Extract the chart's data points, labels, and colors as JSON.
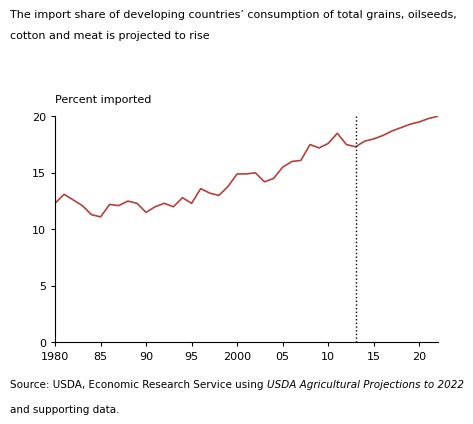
{
  "title_line1": "The import share of developing countries’ consumption of total grains, oilseeds,",
  "title_line2": "cotton and meat is projected to rise",
  "ylabel": "Percent imported",
  "source_normal1": "Source: USDA, Economic Research Service using ",
  "source_italic": "USDA Agricultural Projections to 2022",
  "source_normal2": "and supporting data.",
  "line_color": "#b5403a",
  "dotted_line_x": 2013,
  "xlim": [
    1980,
    2022
  ],
  "ylim": [
    0,
    20
  ],
  "yticks": [
    0,
    5,
    10,
    15,
    20
  ],
  "xticks": [
    1980,
    1985,
    1990,
    1995,
    2000,
    2005,
    2010,
    2015,
    2020
  ],
  "xticklabels": [
    "1980",
    "85",
    "90",
    "95",
    "2000",
    "05",
    "10",
    "15",
    "20"
  ],
  "years": [
    1980,
    1981,
    1982,
    1983,
    1984,
    1985,
    1986,
    1987,
    1988,
    1989,
    1990,
    1991,
    1992,
    1993,
    1994,
    1995,
    1996,
    1997,
    1998,
    1999,
    2000,
    2001,
    2002,
    2003,
    2004,
    2005,
    2006,
    2007,
    2008,
    2009,
    2010,
    2011,
    2012,
    2013,
    2014,
    2015,
    2016,
    2017,
    2018,
    2019,
    2020,
    2021,
    2022
  ],
  "values": [
    12.3,
    13.1,
    12.6,
    12.1,
    11.3,
    11.1,
    12.2,
    12.1,
    12.5,
    12.3,
    11.5,
    12.0,
    12.3,
    12.0,
    12.8,
    12.3,
    13.6,
    13.2,
    13.0,
    13.8,
    14.9,
    14.9,
    15.0,
    14.2,
    14.5,
    15.5,
    16.0,
    16.1,
    17.5,
    17.2,
    17.6,
    18.5,
    17.5,
    17.3,
    17.8,
    18.0,
    18.3,
    18.7,
    19.0,
    19.3,
    19.5,
    19.8,
    20.0
  ]
}
